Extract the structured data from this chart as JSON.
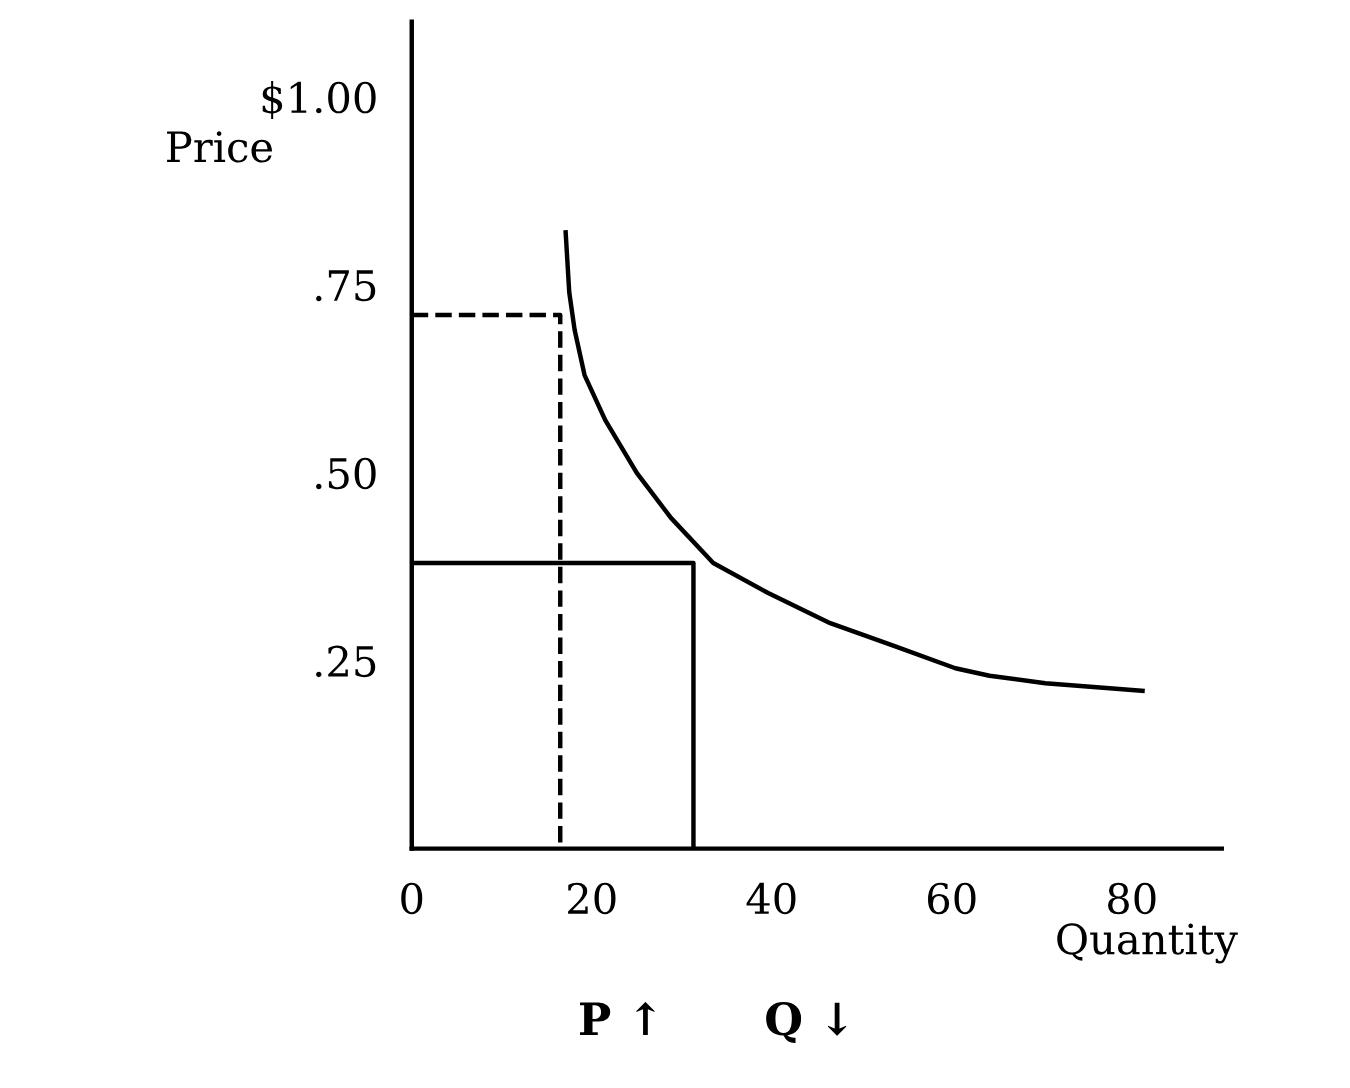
{
  "chart_data": {
    "type": "line",
    "xlabel": "Quantity",
    "ylabel": "Price",
    "xlim": [
      0,
      90
    ],
    "ylim": [
      0,
      1.1
    ],
    "xticks": [
      0,
      20,
      40,
      60,
      80
    ],
    "yticks": [
      {
        "value": 0.25,
        "label": ".25"
      },
      {
        "value": 0.5,
        "label": ".50"
      },
      {
        "value": 0.75,
        "label": ".75"
      },
      {
        "value": 1.0,
        "label": "$1.00"
      }
    ],
    "grid": false,
    "legend": false,
    "marker": "none",
    "series": [
      {
        "color": "#000000",
        "line_style": "solid",
        "x": [
          17.1,
          17.5,
          18.1,
          19.2,
          21.5,
          25,
          28.8,
          33.5,
          39.6,
          46.5,
          53.5,
          60.4,
          64.2,
          70.4,
          81.2
        ],
        "values": [
          0.82,
          0.74,
          0.69,
          0.63,
          0.57,
          0.5,
          0.44,
          0.38,
          0.34,
          0.3,
          0.27,
          0.24,
          0.23,
          0.22,
          0.21
        ]
      },
      {
        "color": "#000000",
        "line_style": "dashed",
        "x": [
          0,
          16.5,
          16.5
        ],
        "values": [
          0.71,
          0.71,
          0
        ]
      },
      {
        "color": "#000000",
        "line_style": "solid",
        "x": [
          0,
          31.3,
          31.3
        ],
        "values": [
          0.38,
          0.38,
          0
        ]
      }
    ],
    "annotations": [
      "P ↑",
      "Q ↓"
    ]
  }
}
